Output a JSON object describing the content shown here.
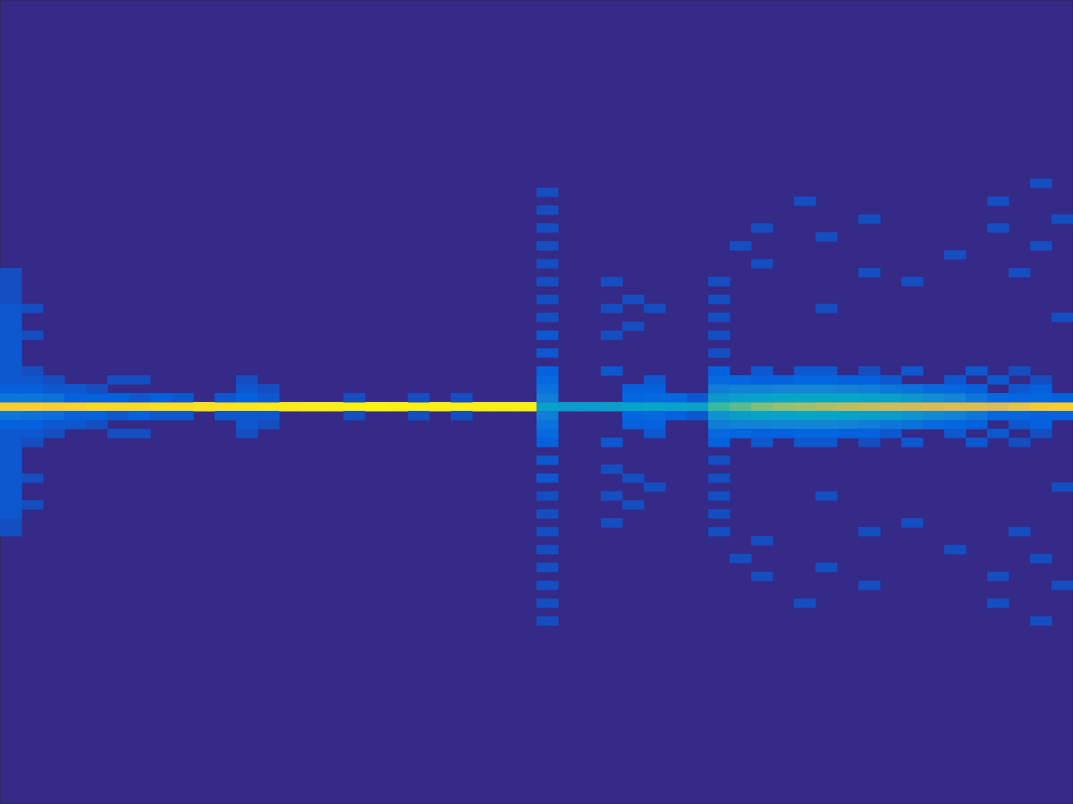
{
  "chart_data": {
    "type": "heatmap",
    "xlim": [
      0,
      50
    ],
    "ylim": [
      0,
      90
    ],
    "tick_labels": false,
    "zlim": [
      0,
      1
    ],
    "cells": [
      [
        0,
        44,
        0.86
      ],
      [
        1,
        44,
        0.87
      ],
      [
        2,
        44,
        0.86
      ],
      [
        3,
        44,
        0.88
      ],
      [
        4,
        44,
        0.9
      ],
      [
        5,
        44,
        0.9
      ],
      [
        6,
        44,
        0.9
      ],
      [
        7,
        44,
        0.92
      ],
      [
        8,
        44,
        0.92
      ],
      [
        9,
        44,
        0.93
      ],
      [
        10,
        44,
        0.93
      ],
      [
        11,
        44,
        0.94
      ],
      [
        12,
        44,
        0.95
      ],
      [
        13,
        44,
        0.95
      ],
      [
        14,
        44,
        0.96
      ],
      [
        15,
        44,
        0.96
      ],
      [
        16,
        44,
        0.97
      ],
      [
        17,
        44,
        0.98
      ],
      [
        18,
        44,
        0.97
      ],
      [
        19,
        44,
        0.97
      ],
      [
        20,
        44,
        0.97
      ],
      [
        21,
        44,
        0.97
      ],
      [
        22,
        44,
        0.97
      ],
      [
        23,
        44,
        0.97
      ],
      [
        24,
        44,
        0.97
      ],
      [
        25,
        44,
        0.35
      ],
      [
        26,
        44,
        0.33
      ],
      [
        27,
        44,
        0.33
      ],
      [
        28,
        44,
        0.34
      ],
      [
        29,
        44,
        0.36
      ],
      [
        30,
        44,
        0.37
      ],
      [
        31,
        44,
        0.36
      ],
      [
        32,
        44,
        0.36
      ],
      [
        33,
        44,
        0.5
      ],
      [
        34,
        44,
        0.55
      ],
      [
        35,
        44,
        0.6
      ],
      [
        36,
        44,
        0.63
      ],
      [
        37,
        44,
        0.65
      ],
      [
        38,
        44,
        0.68
      ],
      [
        39,
        44,
        0.7
      ],
      [
        40,
        44,
        0.72
      ],
      [
        41,
        44,
        0.73
      ],
      [
        42,
        44,
        0.74
      ],
      [
        43,
        44,
        0.75
      ],
      [
        44,
        44,
        0.76
      ],
      [
        45,
        44,
        0.76
      ],
      [
        46,
        44,
        0.75
      ],
      [
        47,
        44,
        0.8
      ],
      [
        48,
        44,
        0.85
      ],
      [
        49,
        44,
        0.86
      ],
      [
        0,
        45,
        0.2
      ],
      [
        1,
        45,
        0.2
      ],
      [
        2,
        45,
        0.18
      ],
      [
        3,
        45,
        0.12
      ],
      [
        4,
        45,
        0.12
      ],
      [
        5,
        45,
        0.12
      ],
      [
        6,
        45,
        0.1
      ],
      [
        7,
        45,
        0.12
      ],
      [
        8,
        45,
        0.1
      ],
      [
        10,
        45,
        0.1
      ],
      [
        11,
        45,
        0.12
      ],
      [
        12,
        45,
        0.1
      ],
      [
        16,
        45,
        0.08
      ],
      [
        19,
        45,
        0.08
      ],
      [
        21,
        45,
        0.08
      ],
      [
        25,
        45,
        0.22
      ],
      [
        29,
        45,
        0.14
      ],
      [
        30,
        45,
        0.15
      ],
      [
        31,
        45,
        0.14
      ],
      [
        32,
        45,
        0.1
      ],
      [
        33,
        45,
        0.32
      ],
      [
        34,
        45,
        0.35
      ],
      [
        35,
        45,
        0.36
      ],
      [
        36,
        45,
        0.37
      ],
      [
        37,
        45,
        0.37
      ],
      [
        38,
        45,
        0.37
      ],
      [
        39,
        45,
        0.37
      ],
      [
        40,
        45,
        0.36
      ],
      [
        41,
        45,
        0.35
      ],
      [
        42,
        45,
        0.32
      ],
      [
        43,
        45,
        0.28
      ],
      [
        44,
        45,
        0.25
      ],
      [
        45,
        45,
        0.2
      ],
      [
        46,
        45,
        0.15
      ],
      [
        47,
        45,
        0.14
      ],
      [
        48,
        45,
        0.14
      ],
      [
        49,
        45,
        0.12
      ],
      [
        0,
        43,
        0.2
      ],
      [
        1,
        43,
        0.18
      ],
      [
        2,
        43,
        0.16
      ],
      [
        3,
        43,
        0.12
      ],
      [
        4,
        43,
        0.12
      ],
      [
        5,
        43,
        0.1
      ],
      [
        6,
        43,
        0.12
      ],
      [
        7,
        43,
        0.1
      ],
      [
        8,
        43,
        0.1
      ],
      [
        10,
        43,
        0.1
      ],
      [
        11,
        43,
        0.1
      ],
      [
        12,
        43,
        0.1
      ],
      [
        16,
        43,
        0.08
      ],
      [
        19,
        43,
        0.08
      ],
      [
        21,
        43,
        0.08
      ],
      [
        25,
        43,
        0.22
      ],
      [
        29,
        43,
        0.14
      ],
      [
        30,
        43,
        0.15
      ],
      [
        31,
        43,
        0.12
      ],
      [
        32,
        43,
        0.1
      ],
      [
        33,
        43,
        0.3
      ],
      [
        34,
        43,
        0.34
      ],
      [
        35,
        43,
        0.36
      ],
      [
        36,
        43,
        0.36
      ],
      [
        37,
        43,
        0.37
      ],
      [
        38,
        43,
        0.36
      ],
      [
        39,
        43,
        0.36
      ],
      [
        40,
        43,
        0.35
      ],
      [
        41,
        43,
        0.34
      ],
      [
        42,
        43,
        0.3
      ],
      [
        43,
        43,
        0.27
      ],
      [
        44,
        43,
        0.24
      ],
      [
        45,
        43,
        0.2
      ],
      [
        46,
        43,
        0.14
      ],
      [
        47,
        43,
        0.14
      ],
      [
        48,
        43,
        0.12
      ],
      [
        49,
        43,
        0.12
      ],
      [
        0,
        46,
        0.12
      ],
      [
        1,
        46,
        0.12
      ],
      [
        2,
        46,
        0.1
      ],
      [
        3,
        46,
        0.1
      ],
      [
        4,
        46,
        0.08
      ],
      [
        11,
        46,
        0.1
      ],
      [
        12,
        46,
        0.08
      ],
      [
        25,
        46,
        0.18
      ],
      [
        29,
        46,
        0.12
      ],
      [
        30,
        46,
        0.12
      ],
      [
        33,
        46,
        0.22
      ],
      [
        34,
        46,
        0.24
      ],
      [
        35,
        46,
        0.24
      ],
      [
        36,
        46,
        0.25
      ],
      [
        37,
        46,
        0.25
      ],
      [
        38,
        46,
        0.25
      ],
      [
        39,
        46,
        0.24
      ],
      [
        40,
        46,
        0.22
      ],
      [
        41,
        46,
        0.2
      ],
      [
        42,
        46,
        0.18
      ],
      [
        43,
        46,
        0.15
      ],
      [
        44,
        46,
        0.14
      ],
      [
        45,
        46,
        0.12
      ],
      [
        47,
        46,
        0.1
      ],
      [
        48,
        46,
        0.12
      ],
      [
        0,
        42,
        0.12
      ],
      [
        1,
        42,
        0.12
      ],
      [
        2,
        42,
        0.1
      ],
      [
        3,
        42,
        0.1
      ],
      [
        4,
        42,
        0.08
      ],
      [
        11,
        42,
        0.1
      ],
      [
        12,
        42,
        0.08
      ],
      [
        25,
        42,
        0.18
      ],
      [
        29,
        42,
        0.12
      ],
      [
        30,
        42,
        0.12
      ],
      [
        33,
        42,
        0.22
      ],
      [
        34,
        42,
        0.24
      ],
      [
        35,
        42,
        0.24
      ],
      [
        36,
        42,
        0.25
      ],
      [
        37,
        42,
        0.25
      ],
      [
        38,
        42,
        0.25
      ],
      [
        39,
        42,
        0.24
      ],
      [
        40,
        42,
        0.22
      ],
      [
        41,
        42,
        0.2
      ],
      [
        42,
        42,
        0.18
      ],
      [
        43,
        42,
        0.15
      ],
      [
        44,
        42,
        0.14
      ],
      [
        45,
        42,
        0.12
      ],
      [
        47,
        42,
        0.1
      ],
      [
        48,
        42,
        0.12
      ],
      [
        0,
        47,
        0.1
      ],
      [
        1,
        47,
        0.1
      ],
      [
        2,
        47,
        0.08
      ],
      [
        5,
        47,
        0.08
      ],
      [
        6,
        47,
        0.08
      ],
      [
        11,
        47,
        0.08
      ],
      [
        25,
        47,
        0.15
      ],
      [
        30,
        47,
        0.1
      ],
      [
        33,
        47,
        0.15
      ],
      [
        34,
        47,
        0.14
      ],
      [
        35,
        47,
        0.12
      ],
      [
        36,
        47,
        0.12
      ],
      [
        37,
        47,
        0.14
      ],
      [
        38,
        47,
        0.14
      ],
      [
        39,
        47,
        0.12
      ],
      [
        40,
        47,
        0.12
      ],
      [
        41,
        47,
        0.1
      ],
      [
        44,
        47,
        0.1
      ],
      [
        46,
        47,
        0.1
      ],
      [
        48,
        47,
        0.08
      ],
      [
        0,
        41,
        0.1
      ],
      [
        1,
        41,
        0.1
      ],
      [
        2,
        41,
        0.08
      ],
      [
        5,
        41,
        0.08
      ],
      [
        6,
        41,
        0.08
      ],
      [
        11,
        41,
        0.08
      ],
      [
        25,
        41,
        0.15
      ],
      [
        30,
        41,
        0.1
      ],
      [
        33,
        41,
        0.15
      ],
      [
        34,
        41,
        0.14
      ],
      [
        35,
        41,
        0.12
      ],
      [
        36,
        41,
        0.12
      ],
      [
        37,
        41,
        0.14
      ],
      [
        38,
        41,
        0.14
      ],
      [
        39,
        41,
        0.12
      ],
      [
        40,
        41,
        0.12
      ],
      [
        41,
        41,
        0.1
      ],
      [
        44,
        41,
        0.1
      ],
      [
        46,
        41,
        0.1
      ],
      [
        48,
        41,
        0.08
      ],
      [
        0,
        48,
        0.1
      ],
      [
        1,
        48,
        0.08
      ],
      [
        25,
        48,
        0.12
      ],
      [
        28,
        48,
        0.1
      ],
      [
        33,
        48,
        0.12
      ],
      [
        35,
        48,
        0.1
      ],
      [
        37,
        48,
        0.1
      ],
      [
        38,
        48,
        0.1
      ],
      [
        40,
        48,
        0.08
      ],
      [
        42,
        48,
        0.1
      ],
      [
        45,
        48,
        0.1
      ],
      [
        47,
        48,
        0.08
      ],
      [
        0,
        40,
        0.1
      ],
      [
        1,
        40,
        0.08
      ],
      [
        25,
        40,
        0.12
      ],
      [
        28,
        40,
        0.1
      ],
      [
        33,
        40,
        0.12
      ],
      [
        35,
        40,
        0.1
      ],
      [
        37,
        40,
        0.1
      ],
      [
        38,
        40,
        0.1
      ],
      [
        40,
        40,
        0.08
      ],
      [
        42,
        40,
        0.1
      ],
      [
        45,
        40,
        0.1
      ],
      [
        47,
        40,
        0.08
      ],
      [
        0,
        30,
        0.08
      ],
      [
        0,
        31,
        0.08
      ],
      [
        0,
        32,
        0.1
      ],
      [
        0,
        33,
        0.1
      ],
      [
        0,
        34,
        0.1
      ],
      [
        0,
        35,
        0.1
      ],
      [
        0,
        36,
        0.1
      ],
      [
        0,
        37,
        0.1
      ],
      [
        0,
        38,
        0.1
      ],
      [
        0,
        39,
        0.1
      ],
      [
        0,
        49,
        0.1
      ],
      [
        0,
        50,
        0.1
      ],
      [
        0,
        51,
        0.1
      ],
      [
        0,
        52,
        0.1
      ],
      [
        0,
        53,
        0.1
      ],
      [
        0,
        54,
        0.1
      ],
      [
        0,
        55,
        0.1
      ],
      [
        0,
        56,
        0.08
      ],
      [
        0,
        57,
        0.08
      ],
      [
        0,
        58,
        0.08
      ],
      [
        0,
        59,
        0.08
      ],
      [
        1,
        33,
        0.08
      ],
      [
        1,
        36,
        0.08
      ],
      [
        1,
        52,
        0.08
      ],
      [
        1,
        55,
        0.08
      ],
      [
        25,
        20,
        0.08
      ],
      [
        25,
        22,
        0.08
      ],
      [
        25,
        24,
        0.08
      ],
      [
        25,
        26,
        0.08
      ],
      [
        25,
        28,
        0.08
      ],
      [
        25,
        30,
        0.08
      ],
      [
        25,
        32,
        0.08
      ],
      [
        25,
        34,
        0.08
      ],
      [
        25,
        36,
        0.1
      ],
      [
        25,
        38,
        0.1
      ],
      [
        25,
        50,
        0.1
      ],
      [
        25,
        52,
        0.1
      ],
      [
        25,
        54,
        0.08
      ],
      [
        25,
        56,
        0.08
      ],
      [
        25,
        58,
        0.08
      ],
      [
        25,
        60,
        0.08
      ],
      [
        25,
        62,
        0.08
      ],
      [
        25,
        64,
        0.08
      ],
      [
        25,
        66,
        0.08
      ],
      [
        25,
        68,
        0.08
      ],
      [
        28,
        31,
        0.08
      ],
      [
        28,
        34,
        0.08
      ],
      [
        28,
        37,
        0.08
      ],
      [
        28,
        52,
        0.08
      ],
      [
        28,
        55,
        0.08
      ],
      [
        28,
        58,
        0.08
      ],
      [
        29,
        33,
        0.08
      ],
      [
        29,
        36,
        0.08
      ],
      [
        29,
        53,
        0.08
      ],
      [
        29,
        56,
        0.08
      ],
      [
        30,
        35,
        0.08
      ],
      [
        30,
        55,
        0.08
      ],
      [
        33,
        30,
        0.08
      ],
      [
        33,
        32,
        0.08
      ],
      [
        33,
        34,
        0.08
      ],
      [
        33,
        36,
        0.08
      ],
      [
        33,
        38,
        0.08
      ],
      [
        33,
        50,
        0.08
      ],
      [
        33,
        52,
        0.08
      ],
      [
        33,
        54,
        0.08
      ],
      [
        33,
        56,
        0.08
      ],
      [
        33,
        58,
        0.08
      ],
      [
        34,
        27,
        0.08
      ],
      [
        34,
        62,
        0.08
      ],
      [
        35,
        25,
        0.08
      ],
      [
        35,
        29,
        0.08
      ],
      [
        35,
        60,
        0.08
      ],
      [
        35,
        64,
        0.08
      ],
      [
        37,
        22,
        0.08
      ],
      [
        37,
        67,
        0.08
      ],
      [
        38,
        26,
        0.08
      ],
      [
        38,
        34,
        0.08
      ],
      [
        38,
        55,
        0.08
      ],
      [
        38,
        63,
        0.08
      ],
      [
        40,
        24,
        0.08
      ],
      [
        40,
        30,
        0.08
      ],
      [
        40,
        59,
        0.08
      ],
      [
        40,
        65,
        0.08
      ],
      [
        42,
        31,
        0.08
      ],
      [
        42,
        58,
        0.08
      ],
      [
        44,
        28,
        0.08
      ],
      [
        44,
        61,
        0.08
      ],
      [
        46,
        22,
        0.08
      ],
      [
        46,
        25,
        0.08
      ],
      [
        46,
        64,
        0.08
      ],
      [
        46,
        67,
        0.08
      ],
      [
        47,
        30,
        0.08
      ],
      [
        47,
        59,
        0.08
      ],
      [
        48,
        20,
        0.08
      ],
      [
        48,
        27,
        0.08
      ],
      [
        48,
        62,
        0.08
      ],
      [
        48,
        69,
        0.08
      ],
      [
        49,
        24,
        0.08
      ],
      [
        49,
        35,
        0.08
      ],
      [
        49,
        54,
        0.08
      ],
      [
        49,
        65,
        0.08
      ]
    ]
  }
}
